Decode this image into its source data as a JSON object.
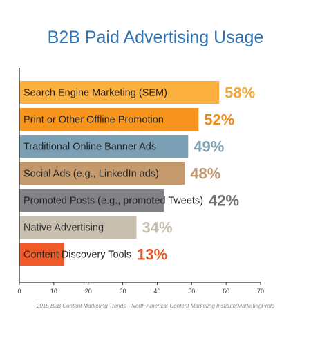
{
  "chart_data": {
    "type": "bar",
    "orientation": "horizontal",
    "title": "B2B Paid Advertising Usage",
    "categories": [
      "Search Engine Marketing (SEM)",
      "Print or Other Offline Promotion",
      "Traditional Online Banner Ads",
      "Social Ads (e.g., LinkedIn ads)",
      "Promoted Posts (e.g., promoted Tweets)",
      "Native Advertising",
      "Content Discovery Tools"
    ],
    "values": [
      58,
      52,
      49,
      48,
      42,
      34,
      13
    ],
    "value_labels": [
      "58%",
      "52%",
      "49%",
      "48%",
      "42%",
      "34%",
      "13%"
    ],
    "colors": [
      "#fbb040",
      "#f7941d",
      "#7b9fb5",
      "#c49a6c",
      "#808285",
      "#c8bfae",
      "#ef5a28"
    ],
    "label_colors": [
      "#f3a83b",
      "#f08a1a",
      "#7f9fb4",
      "#bf966a",
      "#6d6e71",
      "#c8bfae",
      "#ea5424"
    ],
    "xlim": [
      0,
      70
    ],
    "xticks": [
      "0",
      "10",
      "20",
      "30",
      "40",
      "50",
      "60",
      "70"
    ],
    "xlabel": "",
    "ylabel": "",
    "grid": false,
    "source": "2015 B2B Content Marketing Trends—North America: Content Marketing Institute/MarketingProfs"
  }
}
